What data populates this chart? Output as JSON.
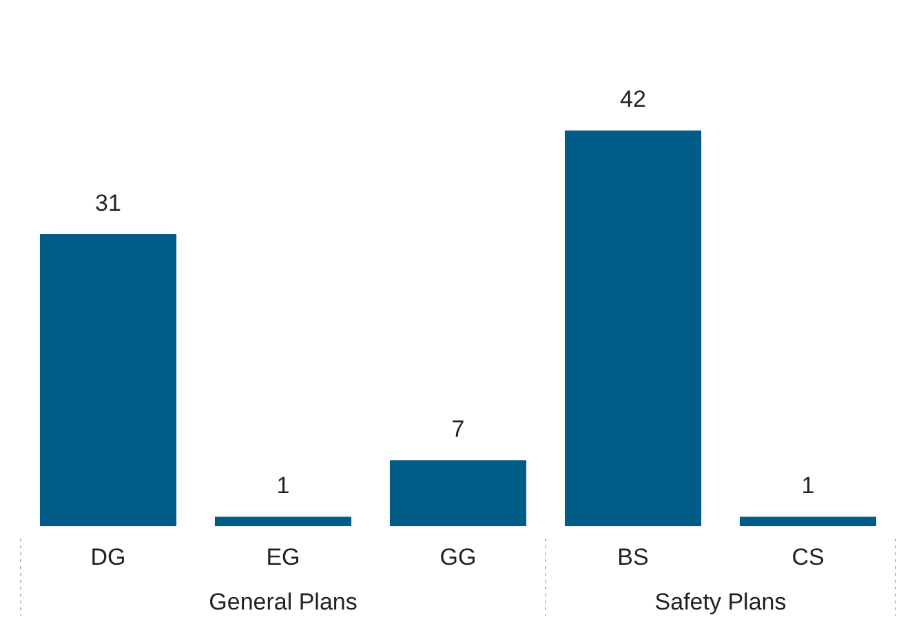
{
  "chart_data": {
    "type": "bar",
    "categories": [
      "DG",
      "EG",
      "GG",
      "BS",
      "CS"
    ],
    "values": [
      31,
      1,
      7,
      42,
      1
    ],
    "color": "#005b87",
    "data_labels": true,
    "annotations": [
      "General Plans",
      "Safety Plans"
    ]
  }
}
